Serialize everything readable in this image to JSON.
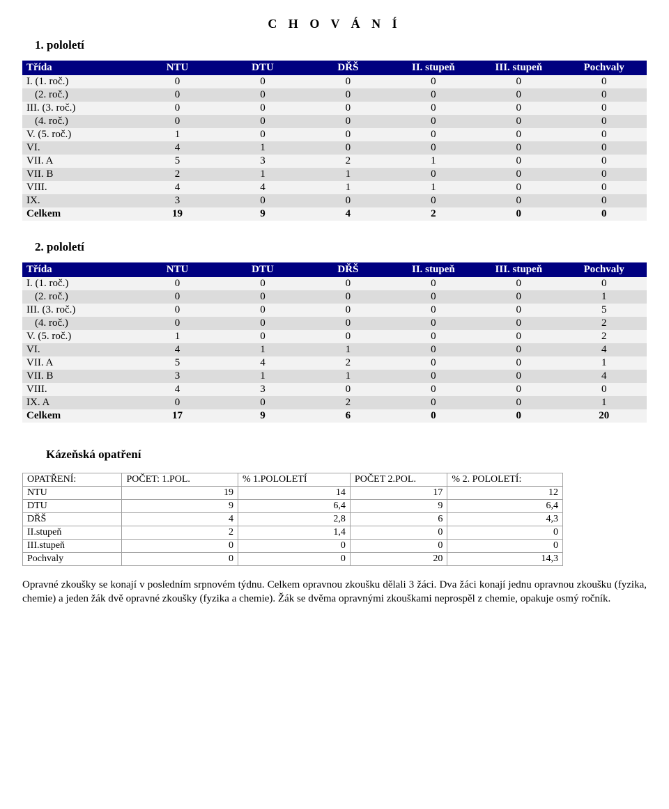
{
  "mainTitle": "C H O V Á N Í",
  "sem1": {
    "title": "1. pololetí",
    "header": [
      "Třída",
      "NTU",
      "DTU",
      "DŘŠ",
      "II. stupeň",
      "III. stupeň",
      "Pochvaly"
    ],
    "rows": [
      {
        "indent": false,
        "cells": [
          "I. (1. roč.)",
          "0",
          "0",
          "0",
          "0",
          "0",
          "0"
        ]
      },
      {
        "indent": true,
        "cells": [
          "(2. roč.)",
          "0",
          "0",
          "0",
          "0",
          "0",
          "0"
        ]
      },
      {
        "indent": false,
        "cells": [
          "III. (3. roč.)",
          "0",
          "0",
          "0",
          "0",
          "0",
          "0"
        ]
      },
      {
        "indent": true,
        "cells": [
          "(4. roč.)",
          "0",
          "0",
          "0",
          "0",
          "0",
          "0"
        ]
      },
      {
        "indent": false,
        "cells": [
          "V. (5. roč.)",
          "1",
          "0",
          "0",
          "0",
          "0",
          "0"
        ]
      },
      {
        "indent": false,
        "cells": [
          "VI.",
          "4",
          "1",
          "0",
          "0",
          "0",
          "0"
        ]
      },
      {
        "indent": false,
        "cells": [
          "VII. A",
          "5",
          "3",
          "2",
          "1",
          "0",
          "0"
        ]
      },
      {
        "indent": false,
        "cells": [
          "VII. B",
          "2",
          "1",
          "1",
          "0",
          "0",
          "0"
        ]
      },
      {
        "indent": false,
        "cells": [
          "VIII.",
          "4",
          "4",
          "1",
          "1",
          "0",
          "0"
        ]
      },
      {
        "indent": false,
        "cells": [
          "IX.",
          "3",
          "0",
          "0",
          "0",
          "0",
          "0"
        ]
      }
    ],
    "total": [
      "Celkem",
      "19",
      "9",
      "4",
      "2",
      "0",
      "0"
    ]
  },
  "sem2": {
    "title": "2. pololetí",
    "header": [
      "Třída",
      "NTU",
      "DTU",
      "DŘŠ",
      "II. stupeň",
      "III. stupeň",
      "Pochvaly"
    ],
    "rows": [
      {
        "indent": false,
        "cells": [
          "I. (1. roč.)",
          "0",
          "0",
          "0",
          "0",
          "0",
          "0"
        ]
      },
      {
        "indent": true,
        "cells": [
          "(2. roč.)",
          "0",
          "0",
          "0",
          "0",
          "0",
          "1"
        ]
      },
      {
        "indent": false,
        "cells": [
          "III. (3. roč.)",
          "0",
          "0",
          "0",
          "0",
          "0",
          "5"
        ]
      },
      {
        "indent": true,
        "cells": [
          "(4. roč.)",
          "0",
          "0",
          "0",
          "0",
          "0",
          "2"
        ]
      },
      {
        "indent": false,
        "cells": [
          "V. (5. roč.)",
          "1",
          "0",
          "0",
          "0",
          "0",
          "2"
        ]
      },
      {
        "indent": false,
        "cells": [
          "VI.",
          "4",
          "1",
          "1",
          "0",
          "0",
          "4"
        ]
      },
      {
        "indent": false,
        "cells": [
          "VII. A",
          "5",
          "4",
          "2",
          "0",
          "0",
          "1"
        ]
      },
      {
        "indent": false,
        "cells": [
          "VII. B",
          "3",
          "1",
          "1",
          "0",
          "0",
          "4"
        ]
      },
      {
        "indent": false,
        "cells": [
          "VIII.",
          "4",
          "3",
          "0",
          "0",
          "0",
          "0"
        ]
      },
      {
        "indent": false,
        "cells": [
          "IX. A",
          "0",
          "0",
          "2",
          "0",
          "0",
          "1"
        ]
      }
    ],
    "total": [
      "Celkem",
      "17",
      "9",
      "6",
      "0",
      "0",
      "20"
    ]
  },
  "measures": {
    "title": "Kázeňská opatření",
    "header": [
      "OPATŘENÍ:",
      "POČET: 1.POL.",
      "%  1.POLOLETÍ",
      "POČET 2.POL.",
      "% 2. POLOLETÍ:"
    ],
    "rows": [
      [
        "NTU",
        "19",
        "14",
        "17",
        "12"
      ],
      [
        "DTU",
        "9",
        "6,4",
        "9",
        "6,4"
      ],
      [
        "DŘŠ",
        "4",
        "2,8",
        "6",
        "4,3"
      ],
      [
        "II.stupeň",
        "2",
        "1,4",
        "0",
        "0"
      ],
      [
        "III.stupeň",
        "0",
        "0",
        "0",
        "0"
      ],
      [
        "Pochvaly",
        "0",
        "0",
        "20",
        "14,3"
      ]
    ]
  },
  "paragraph": "Opravné zkoušky se konají v posledním srpnovém týdnu. Celkem opravnou zkoušku dělali 3 žáci. Dva žáci konají jednu opravnou zkoušku (fyzika, chemie) a jeden žák dvě opravné zkoušky (fyzika a chemie). Žák se dvěma opravnými zkouškami neprospěl z chemie, opakuje osmý ročník."
}
